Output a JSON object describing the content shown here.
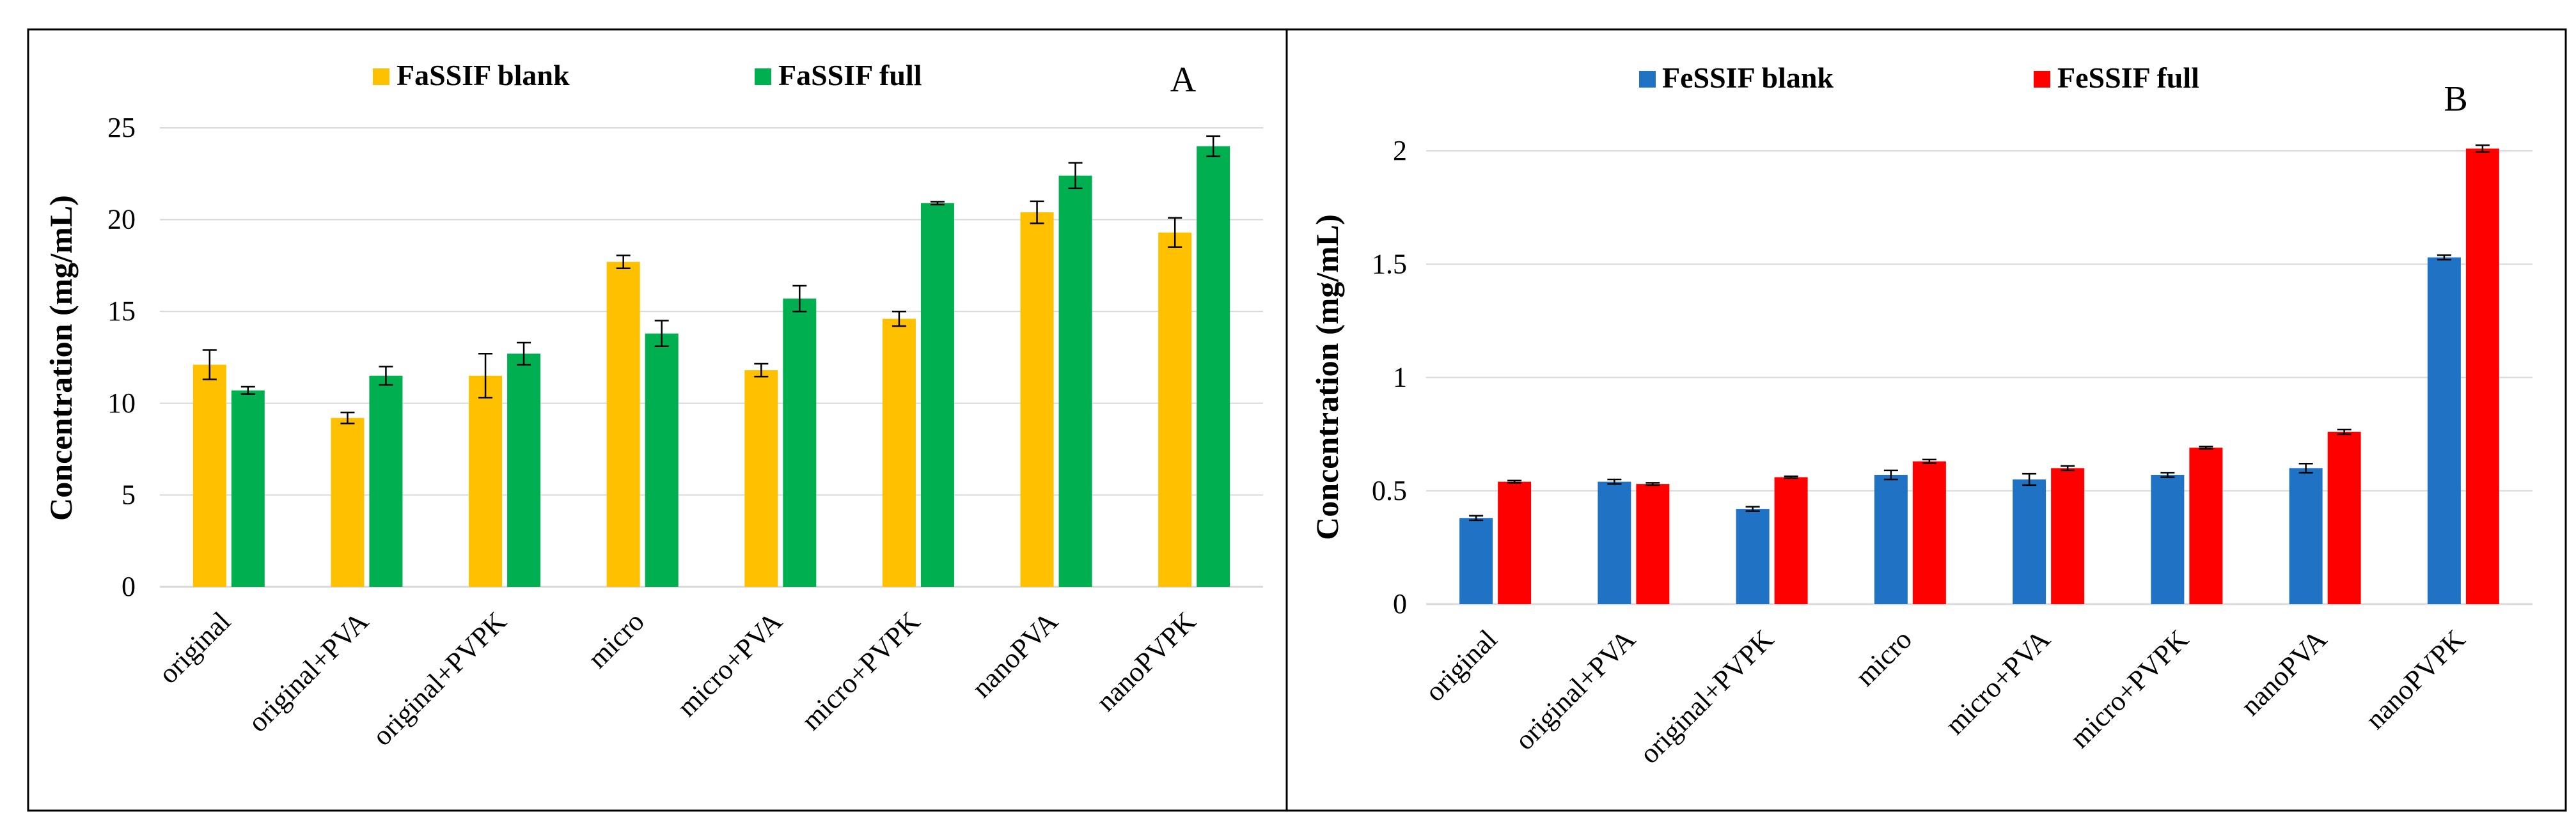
{
  "chart_data": [
    {
      "panel_label": "A",
      "type": "bar",
      "title": "",
      "xlabel": "",
      "ylabel": "Concentration  (mg/mL)",
      "ylim": [
        0,
        25
      ],
      "yticks": [
        "0",
        "5",
        "10",
        "15",
        "20",
        "25"
      ],
      "ytick_values": [
        0,
        5,
        10,
        15,
        20,
        25
      ],
      "grid": true,
      "legend_position": "top",
      "categories": [
        "original",
        "original+PVA",
        "original+PVPK",
        "micro",
        "micro+PVA",
        "micro+PVPK",
        "nanoPVA",
        "nanoPVPK"
      ],
      "series": [
        {
          "name": "FaSSIF blank",
          "color": "#FFC000",
          "values": [
            12.1,
            9.2,
            11.5,
            17.7,
            11.8,
            14.6,
            20.4,
            19.3
          ],
          "errors": [
            0.8,
            0.3,
            1.2,
            0.35,
            0.35,
            0.4,
            0.6,
            0.8
          ]
        },
        {
          "name": "FaSSIF full",
          "color": "#00B050",
          "values": [
            10.7,
            11.5,
            12.7,
            13.8,
            15.7,
            20.9,
            22.4,
            24.0
          ],
          "errors": [
            0.2,
            0.5,
            0.6,
            0.7,
            0.7,
            0.08,
            0.7,
            0.55
          ]
        }
      ]
    },
    {
      "panel_label": "B",
      "type": "bar",
      "title": "",
      "xlabel": "",
      "ylabel": "Concentration  (mg/mL)",
      "ylim": [
        0,
        2
      ],
      "yticks": [
        "0",
        "0.5",
        "1",
        "1.5",
        "2"
      ],
      "ytick_values": [
        0,
        0.5,
        1,
        1.5,
        2
      ],
      "grid": true,
      "legend_position": "top",
      "categories": [
        "original",
        "original+PVA",
        "original+PVPK",
        "micro",
        "micro+PVA",
        "micro+PVPK",
        "nanoPVA",
        "nanoPVPK"
      ],
      "series": [
        {
          "name": "FeSSIF blank",
          "color": "#1F72C4",
          "values": [
            0.38,
            0.54,
            0.42,
            0.57,
            0.55,
            0.57,
            0.6,
            1.53
          ],
          "errors": [
            0.01,
            0.01,
            0.01,
            0.02,
            0.025,
            0.01,
            0.02,
            0.01
          ]
        },
        {
          "name": "FeSSIF full",
          "color": "#FF0000",
          "values": [
            0.54,
            0.53,
            0.56,
            0.63,
            0.6,
            0.69,
            0.76,
            2.01
          ],
          "errors": [
            0.005,
            0.005,
            0.004,
            0.008,
            0.01,
            0.005,
            0.01,
            0.015
          ]
        }
      ]
    }
  ]
}
